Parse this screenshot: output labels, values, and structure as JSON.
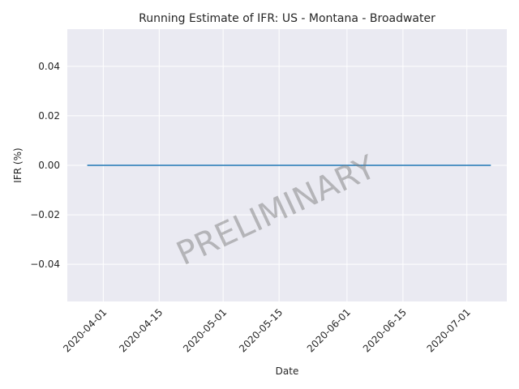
{
  "chart_data": {
    "type": "line",
    "title": "Running Estimate of IFR: US - Montana - Broadwater",
    "xlabel": "Date",
    "ylabel": "IFR (%)",
    "watermark": "PRELIMINARY",
    "x_range": [
      "2020-03-23",
      "2020-07-11"
    ],
    "ylim": [
      -0.055,
      0.055
    ],
    "x_ticks": [
      "2020-04-01",
      "2020-04-15",
      "2020-05-01",
      "2020-05-15",
      "2020-06-01",
      "2020-06-15",
      "2020-07-01"
    ],
    "y_ticks": [
      -0.04,
      -0.02,
      0.0,
      0.02,
      0.04
    ],
    "y_tick_labels": [
      "−0.04",
      "−0.02",
      "0.00",
      "0.02",
      "0.04"
    ],
    "grid": true,
    "series": [
      {
        "color": "#1f77b4",
        "x": [
          "2020-03-28",
          "2020-07-07"
        ],
        "y": [
          0.0,
          0.0
        ]
      }
    ],
    "colors": {
      "background": "#eaeaf2",
      "grid": "#ffffff"
    }
  }
}
